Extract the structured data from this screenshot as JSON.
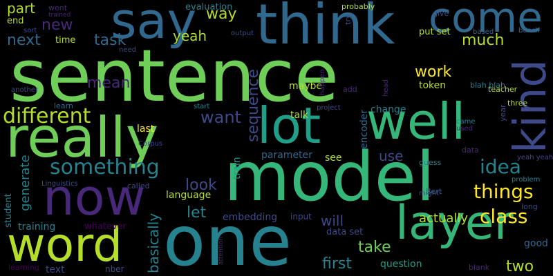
{
  "background": "#000000",
  "palette": [
    "#440154",
    "#482878",
    "#3e4989",
    "#31688e",
    "#26828e",
    "#1f9e89",
    "#35b779",
    "#6ece58",
    "#b5de2b",
    "#fde725"
  ],
  "words": [
    {
      "text": "sentence",
      "color": "#6ece58"
    },
    {
      "text": "model",
      "color": "#35b779"
    },
    {
      "text": "one",
      "color": "#26828e"
    },
    {
      "text": "think",
      "color": "#31688e"
    },
    {
      "text": "say",
      "color": "#31688e"
    },
    {
      "text": "really",
      "color": "#6ece58"
    },
    {
      "text": "now",
      "color": "#482878"
    },
    {
      "text": "word",
      "color": "#b5de2b"
    },
    {
      "text": "lot",
      "color": "#1f9e89"
    },
    {
      "text": "well",
      "color": "#35b779"
    },
    {
      "text": "kind",
      "color": "#3e4989"
    },
    {
      "text": "come",
      "color": "#31688e"
    },
    {
      "text": "layer",
      "color": "#35b779"
    },
    {
      "text": "something",
      "color": "#26828e"
    },
    {
      "text": "different",
      "color": "#b5de2b"
    },
    {
      "text": "idea",
      "color": "#26828e"
    },
    {
      "text": "things",
      "color": "#fde725"
    },
    {
      "text": "class",
      "color": "#fde725"
    },
    {
      "text": "want",
      "color": "#3e4989"
    },
    {
      "text": "task",
      "color": "#31688e"
    },
    {
      "text": "new",
      "color": "#482878"
    },
    {
      "text": "next",
      "color": "#31688e"
    },
    {
      "text": "part",
      "color": "#b5de2b"
    },
    {
      "text": "way",
      "color": "#b5de2b"
    },
    {
      "text": "yeah",
      "color": "#b5de2b"
    },
    {
      "text": "much",
      "color": "#b5de2b"
    },
    {
      "text": "work",
      "color": "#fde725"
    },
    {
      "text": "mean",
      "color": "#482878"
    },
    {
      "text": "sequence",
      "color": "#3e4989"
    },
    {
      "text": "use",
      "color": "#3e4989"
    },
    {
      "text": "look",
      "color": "#3e4989"
    },
    {
      "text": "let",
      "color": "#26828e"
    },
    {
      "text": "take",
      "color": "#6ece58"
    },
    {
      "text": "will",
      "color": "#3e4989"
    },
    {
      "text": "first",
      "color": "#26828e"
    },
    {
      "text": "two",
      "color": "#b5de2b"
    },
    {
      "text": "actually",
      "color": "#b5de2b"
    },
    {
      "text": "basically",
      "color": "#26828e"
    },
    {
      "text": "generate",
      "color": "#26828e"
    },
    {
      "text": "parameter",
      "color": "#31688e"
    },
    {
      "text": "embedding",
      "color": "#3e4989"
    },
    {
      "text": "language",
      "color": "#b5de2b"
    },
    {
      "text": "training",
      "color": "#26828e"
    },
    {
      "text": "student",
      "color": "#26828e"
    },
    {
      "text": "text",
      "color": "#3e4989"
    },
    {
      "text": "question",
      "color": "#1f9e89"
    },
    {
      "text": "data set",
      "color": "#3e4989"
    },
    {
      "text": "train",
      "color": "#1f9e89"
    },
    {
      "text": "encoder",
      "color": "#31688e"
    },
    {
      "text": "token",
      "color": "#b5de2b"
    },
    {
      "text": "maybe",
      "color": "#b5de2b"
    },
    {
      "text": "talk",
      "color": "#b5de2b"
    },
    {
      "text": "last",
      "color": "#fde725"
    },
    {
      "text": "change",
      "color": "#26828e"
    },
    {
      "text": "see",
      "color": "#b5de2b"
    },
    {
      "text": "good",
      "color": "#31688e"
    },
    {
      "text": "time",
      "color": "#b5de2b"
    },
    {
      "text": "end",
      "color": "#b5de2b"
    },
    {
      "text": "evaluation",
      "color": "#26828e"
    },
    {
      "text": "probably",
      "color": "#b5de2b"
    },
    {
      "text": "give",
      "color": "#3e4989"
    },
    {
      "text": "put set",
      "color": "#b5de2b"
    },
    {
      "text": "bunch",
      "color": "#31688e"
    },
    {
      "text": "based",
      "color": "#31688e"
    },
    {
      "text": "blah blah",
      "color": "#26828e"
    },
    {
      "text": "teacher",
      "color": "#b5de2b"
    },
    {
      "text": "three",
      "color": "#b5de2b"
    },
    {
      "text": "year",
      "color": "#3e4989"
    },
    {
      "text": "came",
      "color": "#26828e"
    },
    {
      "text": "used",
      "color": "#482878"
    },
    {
      "text": "yeah yeah",
      "color": "#3e4989"
    },
    {
      "text": "problem",
      "color": "#26828e"
    },
    {
      "text": "long",
      "color": "#3e4989"
    },
    {
      "text": "blank",
      "color": "#482878"
    },
    {
      "text": "Bert",
      "color": "#31688e"
    },
    {
      "text": "might",
      "color": "#3e4989"
    },
    {
      "text": "guess",
      "color": "#26828e"
    },
    {
      "text": "data",
      "color": "#482878"
    },
    {
      "text": "project",
      "color": "#3e4989"
    },
    {
      "text": "head",
      "color": "#482878"
    },
    {
      "text": "add",
      "color": "#482878"
    },
    {
      "text": "happen",
      "color": "#482878"
    },
    {
      "text": "start",
      "color": "#26828e"
    },
    {
      "text": "input",
      "color": "#3e4989"
    },
    {
      "text": "attention",
      "color": "#482878"
    },
    {
      "text": "whatever",
      "color": "#440154"
    },
    {
      "text": "called",
      "color": "#3e4989"
    },
    {
      "text": "Linguistics",
      "color": "#3e4989"
    },
    {
      "text": "learn",
      "color": "#31688e"
    },
    {
      "text": "another",
      "color": "#3e4989"
    },
    {
      "text": "Corpus",
      "color": "#3e4989"
    },
    {
      "text": "learning",
      "color": "#440154"
    },
    {
      "text": "nber",
      "color": "#3e4989"
    },
    {
      "text": "went",
      "color": "#482878"
    },
    {
      "text": "trained",
      "color": "#482878"
    },
    {
      "text": "sort",
      "color": "#3e4989"
    },
    {
      "text": "need",
      "color": "#3e4989"
    },
    {
      "text": "output",
      "color": "#3e4989"
    },
    {
      "text": "try",
      "color": "#3e4989"
    }
  ]
}
